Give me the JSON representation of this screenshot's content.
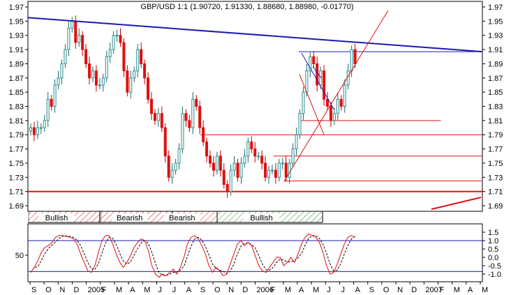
{
  "chart_data": [
    {
      "type": "candlestick",
      "title": "GBP/USD 1:1 (1.90720, 1.91330, 1.88680, 1.88980, -0.01770)",
      "symbol": "GBP/USD",
      "last": {
        "open": 1.9072,
        "high": 1.9133,
        "low": 1.8868,
        "close": 1.8898,
        "change": -0.0177
      },
      "ylim": [
        1.68,
        1.98
      ],
      "y_ticks": [
        "1.97",
        "1.95",
        "1.93",
        "1.91",
        "1.89",
        "1.87",
        "1.85",
        "1.83",
        "1.81",
        "1.79",
        "1.77",
        "1.75",
        "1.73",
        "1.71",
        "1.69"
      ],
      "x_ticks": [
        "S",
        "O",
        "N",
        "D",
        "2005",
        "F",
        "M",
        "A",
        "M",
        "J",
        "J",
        "A",
        "S",
        "O",
        "N",
        "D",
        "2006",
        "F",
        "M",
        "A",
        "M",
        "J",
        "J",
        "A",
        "S",
        "O",
        "N",
        "D",
        "2007",
        "F",
        "M",
        "A",
        "M"
      ],
      "up_color": "#2a8f8f",
      "down_color": "#e01010",
      "closes": [
        1.8,
        1.79,
        1.8,
        1.8,
        1.81,
        1.84,
        1.83,
        1.86,
        1.87,
        1.89,
        1.91,
        1.94,
        1.95,
        1.92,
        1.93,
        1.91,
        1.89,
        1.87,
        1.88,
        1.86,
        1.86,
        1.87,
        1.9,
        1.91,
        1.93,
        1.93,
        1.92,
        1.88,
        1.85,
        1.87,
        1.88,
        1.91,
        1.89,
        1.87,
        1.84,
        1.82,
        1.81,
        1.82,
        1.8,
        1.76,
        1.73,
        1.74,
        1.75,
        1.77,
        1.82,
        1.81,
        1.8,
        1.84,
        1.83,
        1.8,
        1.78,
        1.76,
        1.75,
        1.74,
        1.76,
        1.74,
        1.72,
        1.71,
        1.74,
        1.75,
        1.73,
        1.75,
        1.76,
        1.78,
        1.77,
        1.76,
        1.76,
        1.75,
        1.73,
        1.74,
        1.74,
        1.73,
        1.75,
        1.75,
        1.73,
        1.75,
        1.77,
        1.79,
        1.82,
        1.85,
        1.88,
        1.9,
        1.89,
        1.86,
        1.88,
        1.84,
        1.83,
        1.81,
        1.82,
        1.84,
        1.83,
        1.86,
        1.88,
        1.91,
        1.89
      ],
      "resistance_line": {
        "from": {
          "x": "Sep 2004",
          "y": 1.955
        },
        "to": {
          "x": "May 2007",
          "y": 1.907
        }
      },
      "support_line": {
        "y": 1.71
      },
      "horizontal_levels": [
        1.907,
        1.81,
        1.79,
        1.76,
        1.725
      ],
      "bands": [
        {
          "label": "Bullish",
          "type": "bull",
          "color": "#e01010"
        },
        {
          "label": "Bearish",
          "type": "bear",
          "color": "#e01010"
        },
        {
          "label": "Bearish",
          "type": "bear",
          "color": "#e01010"
        },
        {
          "label": "Bullish",
          "type": "bull",
          "color": "#2a8f2a"
        }
      ]
    },
    {
      "type": "line",
      "name": "stochastic-oscillator",
      "ylim": [
        -1.3,
        1.6
      ],
      "left_tick": "50",
      "right_ticks": [
        "1.5",
        "1.0",
        "0.5",
        "0.0",
        "-0.5",
        "-1.0"
      ],
      "upper_level": 1.0,
      "lower_level": -0.85,
      "k_color": "#e01010",
      "d_color": "#000000",
      "k_values": [
        -0.9,
        -0.6,
        -0.2,
        0.3,
        0.6,
        0.7,
        0.9,
        1.2,
        1.3,
        1.3,
        1.25,
        1.2,
        1.1,
        0.8,
        0.2,
        -0.3,
        -0.8,
        -0.9,
        -0.5,
        0.3,
        1.0,
        1.3,
        1.3,
        0.8,
        0.2,
        -0.3,
        -0.6,
        -0.3,
        0.1,
        0.6,
        0.9,
        1.1,
        1.0,
        0.4,
        -0.5,
        -1.0,
        -1.2,
        -1.0,
        -1.1,
        -0.9,
        -0.7,
        -1.0,
        -0.6,
        0.0,
        0.8,
        1.2,
        1.3,
        1.1,
        0.7,
        0.2,
        -0.5,
        -0.9,
        -0.6,
        -0.8,
        -1.1,
        -1.0,
        -0.4,
        0.2,
        0.8,
        1.0,
        0.7,
        0.9,
        0.7,
        0.1,
        -0.5,
        -0.8,
        -0.9,
        -0.6,
        -0.3,
        0.0,
        0.0,
        -0.5,
        -0.3,
        0.0,
        -0.3,
        0.2,
        0.8,
        1.2,
        1.4,
        1.3,
        1.2,
        0.9,
        0.3,
        -0.5,
        -1.0,
        -0.9,
        -0.4,
        0.2,
        0.8,
        1.2,
        1.3,
        1.2
      ]
    }
  ]
}
